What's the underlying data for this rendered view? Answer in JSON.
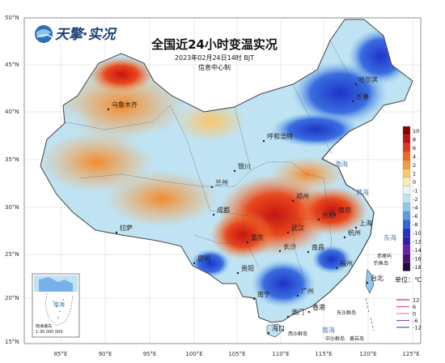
{
  "header": {
    "logo_text": "天擎·实况",
    "title": "全国近24小时变温实况",
    "datetime": "2023年02月24日14时 BJT",
    "issuer": "信息中心制"
  },
  "axes": {
    "lat_labels": [
      "50°N",
      "45°N",
      "40°N",
      "35°N",
      "30°N",
      "25°N",
      "20°N",
      "15°N"
    ],
    "lon_labels": [
      "85°E",
      "90°E",
      "95°E",
      "100°E",
      "105°E",
      "110°E",
      "115°E",
      "120°E",
      "125°E"
    ]
  },
  "cities": [
    {
      "name": "哈尔滨"
    },
    {
      "name": "长春"
    },
    {
      "name": "乌鲁木齐"
    },
    {
      "name": "呼和浩特"
    },
    {
      "name": "银川"
    },
    {
      "name": "兰州"
    },
    {
      "name": "郑州"
    },
    {
      "name": "合肥"
    },
    {
      "name": "南京"
    },
    {
      "name": "上海"
    },
    {
      "name": "杭州"
    },
    {
      "name": "武汉"
    },
    {
      "name": "长沙"
    },
    {
      "name": "南昌"
    },
    {
      "name": "福州"
    },
    {
      "name": "台北"
    },
    {
      "name": "重庆"
    },
    {
      "name": "贵阳"
    },
    {
      "name": "成都"
    },
    {
      "name": "昆明"
    },
    {
      "name": "南宁"
    },
    {
      "name": "广州"
    },
    {
      "name": "香港"
    },
    {
      "name": "澳门"
    },
    {
      "name": "海口"
    },
    {
      "name": "拉萨"
    }
  ],
  "seas": [
    {
      "name": "渤海"
    },
    {
      "name": "黄海"
    },
    {
      "name": "东海"
    },
    {
      "name": "南海"
    }
  ],
  "islands": [
    {
      "name": "赤尾屿"
    },
    {
      "name": "钓鱼岛"
    },
    {
      "name": "东沙群岛"
    },
    {
      "name": "西沙群岛"
    },
    {
      "name": "中沙群岛"
    },
    {
      "name": "南海诸岛"
    },
    {
      "name": "黄岩岛"
    }
  ],
  "inset": {
    "label_title": "南海诸岛",
    "scale_text": "1:30 000 000",
    "sea_label": "南海"
  },
  "legend": {
    "title": "单位：℃",
    "levels": [
      {
        "label": "10",
        "color": "#8b0000"
      },
      {
        "label": "8",
        "color": "#c40f14"
      },
      {
        "label": "6",
        "color": "#e03a1e"
      },
      {
        "label": "4",
        "color": "#f06a22"
      },
      {
        "label": "2",
        "color": "#f79a3b"
      },
      {
        "label": "1",
        "color": "#fbc76a"
      },
      {
        "label": "0",
        "color": "#fdebb0"
      },
      {
        "label": "-1",
        "color": "#e8f4f8"
      },
      {
        "label": "-2",
        "color": "#bfe3f2"
      },
      {
        "label": "-4",
        "color": "#8ec8ec"
      },
      {
        "label": "-6",
        "color": "#5a9be2"
      },
      {
        "label": "-8",
        "color": "#3366dd"
      },
      {
        "label": "-10",
        "color": "#1f33c8"
      },
      {
        "label": "-12",
        "color": "#3a1aa8"
      },
      {
        "label": "-14",
        "color": "#6a1fb0"
      },
      {
        "label": "-16",
        "color": "#4b0d7a"
      },
      {
        "label": "-18",
        "color": "#2a0540"
      }
    ],
    "contours": [
      {
        "label": "12",
        "color": "#e0102a"
      },
      {
        "label": "6",
        "color": "#e05080"
      },
      {
        "label": "0",
        "color": "#d080b0"
      },
      {
        "label": "-6",
        "color": "#8050b0"
      },
      {
        "label": "-12",
        "color": "#404090"
      }
    ]
  }
}
